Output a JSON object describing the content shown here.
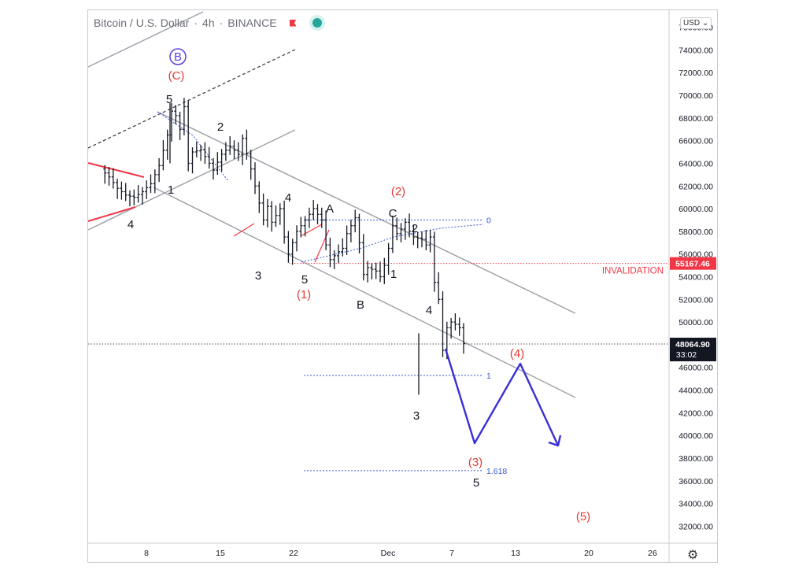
{
  "header": {
    "symbol": "Bitcoin / U.S. Dollar",
    "interval": "4h",
    "exchange": "BINANCE",
    "sep1": "·",
    "sep2": "·"
  },
  "currency_button": "USD",
  "icons": {
    "flag": "flag-icon",
    "live": "live-dot-icon",
    "settings": "gear-icon",
    "chevron": "chevron-down-icon"
  },
  "chart_data": {
    "type": "candlestick",
    "ylim": [
      30500,
      77500
    ],
    "y_ticks": [
      "76000.00",
      "74000.00",
      "72000.00",
      "70000.00",
      "68000.00",
      "66000.00",
      "64000.00",
      "62000.00",
      "60000.00",
      "58000.00",
      "56000.00",
      "54000.00",
      "52000.00",
      "50000.00",
      "48000.00",
      "46000.00",
      "44000.00",
      "42000.00",
      "40000.00",
      "38000.00",
      "36000.00",
      "34000.00",
      "32000.00"
    ],
    "x_ticks": [
      "8",
      "15",
      "22",
      "Dec",
      "7",
      "13",
      "20",
      "26"
    ],
    "current_price": {
      "value": 48064.9,
      "label": "48064.90",
      "countdown": "33:02",
      "color": "#131722"
    },
    "invalidation": {
      "value": 55167.46,
      "label": "55167.46",
      "text": "INVALIDATION",
      "color": "#f23645"
    },
    "price_path": [
      [
        4,
        63500
      ],
      [
        6,
        62800
      ],
      [
        8,
        61800
      ],
      [
        10,
        61200
      ],
      [
        12,
        61000
      ],
      [
        14,
        61500
      ],
      [
        16,
        62200
      ],
      [
        18,
        63800
      ],
      [
        20,
        66500
      ],
      [
        21,
        68600
      ],
      [
        22,
        68200
      ],
      [
        23,
        67000
      ],
      [
        24,
        69000
      ],
      [
        25,
        64000
      ],
      [
        26,
        65000
      ],
      [
        28,
        65200
      ],
      [
        30,
        64000
      ],
      [
        31,
        63400
      ],
      [
        33,
        64800
      ],
      [
        35,
        65500
      ],
      [
        37,
        64800
      ],
      [
        38,
        66200
      ],
      [
        40,
        63500
      ],
      [
        41,
        62000
      ],
      [
        42,
        60500
      ],
      [
        43,
        59000
      ],
      [
        44,
        60200
      ],
      [
        45,
        58800
      ],
      [
        47,
        60000
      ],
      [
        48,
        57500
      ],
      [
        49,
        56000
      ],
      [
        51,
        58000
      ],
      [
        53,
        59000
      ],
      [
        55,
        60000
      ],
      [
        57,
        59000
      ],
      [
        58,
        56800
      ],
      [
        59,
        55500
      ],
      [
        61,
        56200
      ],
      [
        62,
        56500
      ],
      [
        63,
        57800
      ],
      [
        65,
        59200
      ],
      [
        66,
        57000
      ],
      [
        67,
        54200
      ],
      [
        68,
        54800
      ],
      [
        70,
        54500
      ],
      [
        71,
        54000
      ],
      [
        72,
        55000
      ],
      [
        73,
        56500
      ],
      [
        74,
        58500
      ],
      [
        75,
        57800
      ],
      [
        76,
        58200
      ],
      [
        77,
        58800
      ],
      [
        78,
        58000
      ],
      [
        79,
        57500
      ],
      [
        81,
        57300
      ],
      [
        82,
        56800
      ],
      [
        83,
        57500
      ],
      [
        84,
        53500
      ],
      [
        85,
        52000
      ],
      [
        86,
        47500
      ],
      [
        87,
        49500
      ],
      [
        88,
        50000
      ],
      [
        89,
        49800
      ],
      [
        90,
        49500
      ],
      [
        91,
        48100
      ]
    ],
    "projection": [
      {
        "bar": 91,
        "price": 47800
      },
      {
        "bar": 98,
        "price": 39600
      },
      {
        "bar": 108,
        "price": 46500
      },
      {
        "bar": 116,
        "price": 39300
      }
    ],
    "labels": [
      {
        "text": "B",
        "bar": 23,
        "price": 74000,
        "color": "#5b3ee6",
        "circle": true
      },
      {
        "text": "(C)",
        "bar": 23,
        "price": 71800,
        "color": "#e53935"
      },
      {
        "text": "5",
        "bar": 23,
        "price": 69400,
        "color": "#131722"
      },
      {
        "text": "1",
        "bar": 23.5,
        "price": 62100,
        "color": "#131722"
      },
      {
        "text": "2",
        "bar": 38.5,
        "price": 67300,
        "color": "#131722"
      },
      {
        "text": "4",
        "bar": 12,
        "price": 60100,
        "color": "#131722"
      },
      {
        "text": "3",
        "bar": 47.5,
        "price": 54600,
        "color": "#131722"
      },
      {
        "text": "4",
        "bar": 57,
        "price": 61500,
        "color": "#131722"
      },
      {
        "text": "5",
        "bar": 63,
        "price": 54300,
        "color": "#131722"
      },
      {
        "text": "(1)",
        "bar": 62.5,
        "price": 52800,
        "color": "#e53935"
      },
      {
        "text": "A",
        "bar": 67,
        "price": 60400,
        "color": "#131722"
      },
      {
        "text": "B",
        "bar": 71.5,
        "price": 51700,
        "color": "#131722"
      },
      {
        "text": "(2)",
        "bar": 81,
        "price": 62600,
        "color": "#e53935"
      },
      {
        "text": "C",
        "bar": 81,
        "price": 60100,
        "color": "#131722"
      },
      {
        "text": "2",
        "bar": 85.5,
        "price": 58800,
        "color": "#131722"
      },
      {
        "text": "1",
        "bar": 81,
        "price": 55000,
        "color": "#131722"
      },
      {
        "text": "4",
        "bar": 88.5,
        "price": 51600,
        "color": "#131722"
      },
      {
        "text": "3",
        "bar": 86.5,
        "price": 42600,
        "color": "#131722"
      },
      {
        "text": "(4)",
        "bar": 107.5,
        "price": 47600,
        "color": "#e53935"
      },
      {
        "text": "(3)",
        "bar": 98,
        "price": 38500,
        "color": "#e53935"
      },
      {
        "text": "5",
        "bar": 98,
        "price": 36500,
        "color": "#131722"
      },
      {
        "text": "(5)",
        "bar": 121,
        "price": 33200,
        "color": "#e53935"
      }
    ],
    "fib_levels": [
      {
        "label": "0",
        "price": 59000
      },
      {
        "label": "1",
        "price": 45300
      },
      {
        "label": "1.618",
        "price": 36900
      }
    ]
  }
}
